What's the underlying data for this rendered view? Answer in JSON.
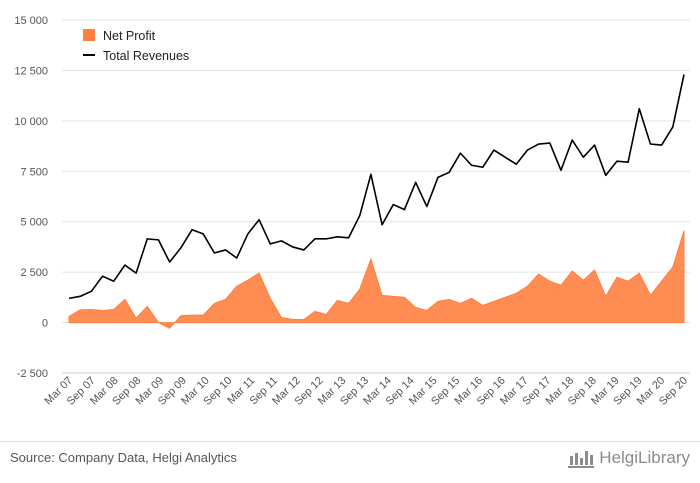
{
  "chart_data": {
    "type": "area+line",
    "title": "",
    "xlabel": "",
    "ylabel": "",
    "ylim": [
      -2500,
      15000
    ],
    "yticks": [
      -2500,
      0,
      2500,
      5000,
      7500,
      10000,
      12500,
      15000
    ],
    "ytick_labels": [
      "-2 500",
      "0",
      "2 500",
      "5 000",
      "7 500",
      "10 000",
      "12 500",
      "15 000"
    ],
    "xtick_labels": [
      "Mar 07",
      "Sep 07",
      "Mar 08",
      "Sep 08",
      "Mar 09",
      "Sep 09",
      "Mar 10",
      "Sep 10",
      "Mar 11",
      "Sep 11",
      "Mar 12",
      "Sep 12",
      "Mar 13",
      "Sep 13",
      "Mar 14",
      "Sep 14",
      "Mar 15",
      "Sep 15",
      "Mar 16",
      "Sep 16",
      "Mar 17",
      "Sep 17",
      "Mar 18",
      "Sep 18",
      "Mar 19",
      "Sep 19",
      "Mar 20",
      "Sep 20"
    ],
    "legend_position": "top-left",
    "series": [
      {
        "name": "Net Profit",
        "kind": "area",
        "color": "#ff7f3f",
        "values": [
          300,
          630,
          650,
          600,
          650,
          1150,
          220,
          800,
          0,
          -280,
          340,
          370,
          360,
          950,
          1150,
          1800,
          2100,
          2450,
          1200,
          250,
          150,
          150,
          550,
          400,
          1100,
          950,
          1650,
          3150,
          1350,
          1300,
          1250,
          750,
          600,
          1050,
          1150,
          950,
          1200,
          850,
          1050,
          1250,
          1450,
          1800,
          2400,
          2050,
          1850,
          2550,
          2100,
          2600,
          1300,
          2250,
          2050,
          2450,
          1350,
          2050,
          2750,
          4550
        ]
      },
      {
        "name": "Total Revenues",
        "kind": "line",
        "color": "#000000",
        "values": [
          1200,
          1300,
          1550,
          2300,
          2050,
          2850,
          2450,
          4150,
          4100,
          3000,
          3700,
          4600,
          4400,
          3450,
          3600,
          3200,
          4400,
          5100,
          3900,
          4050,
          3750,
          3600,
          4150,
          4150,
          4250,
          4200,
          5300,
          7350,
          4850,
          5850,
          5600,
          6950,
          5750,
          7200,
          7450,
          8400,
          7800,
          7700,
          8550,
          8200,
          7850,
          8550,
          8850,
          8900,
          7550,
          9050,
          8200,
          8800,
          7300,
          8000,
          7950,
          10600,
          8850,
          8800,
          9700,
          12300
        ]
      }
    ]
  },
  "footer": {
    "source": "Source: Company Data, Helgi Analytics",
    "brand": "HelgiLibrary"
  }
}
